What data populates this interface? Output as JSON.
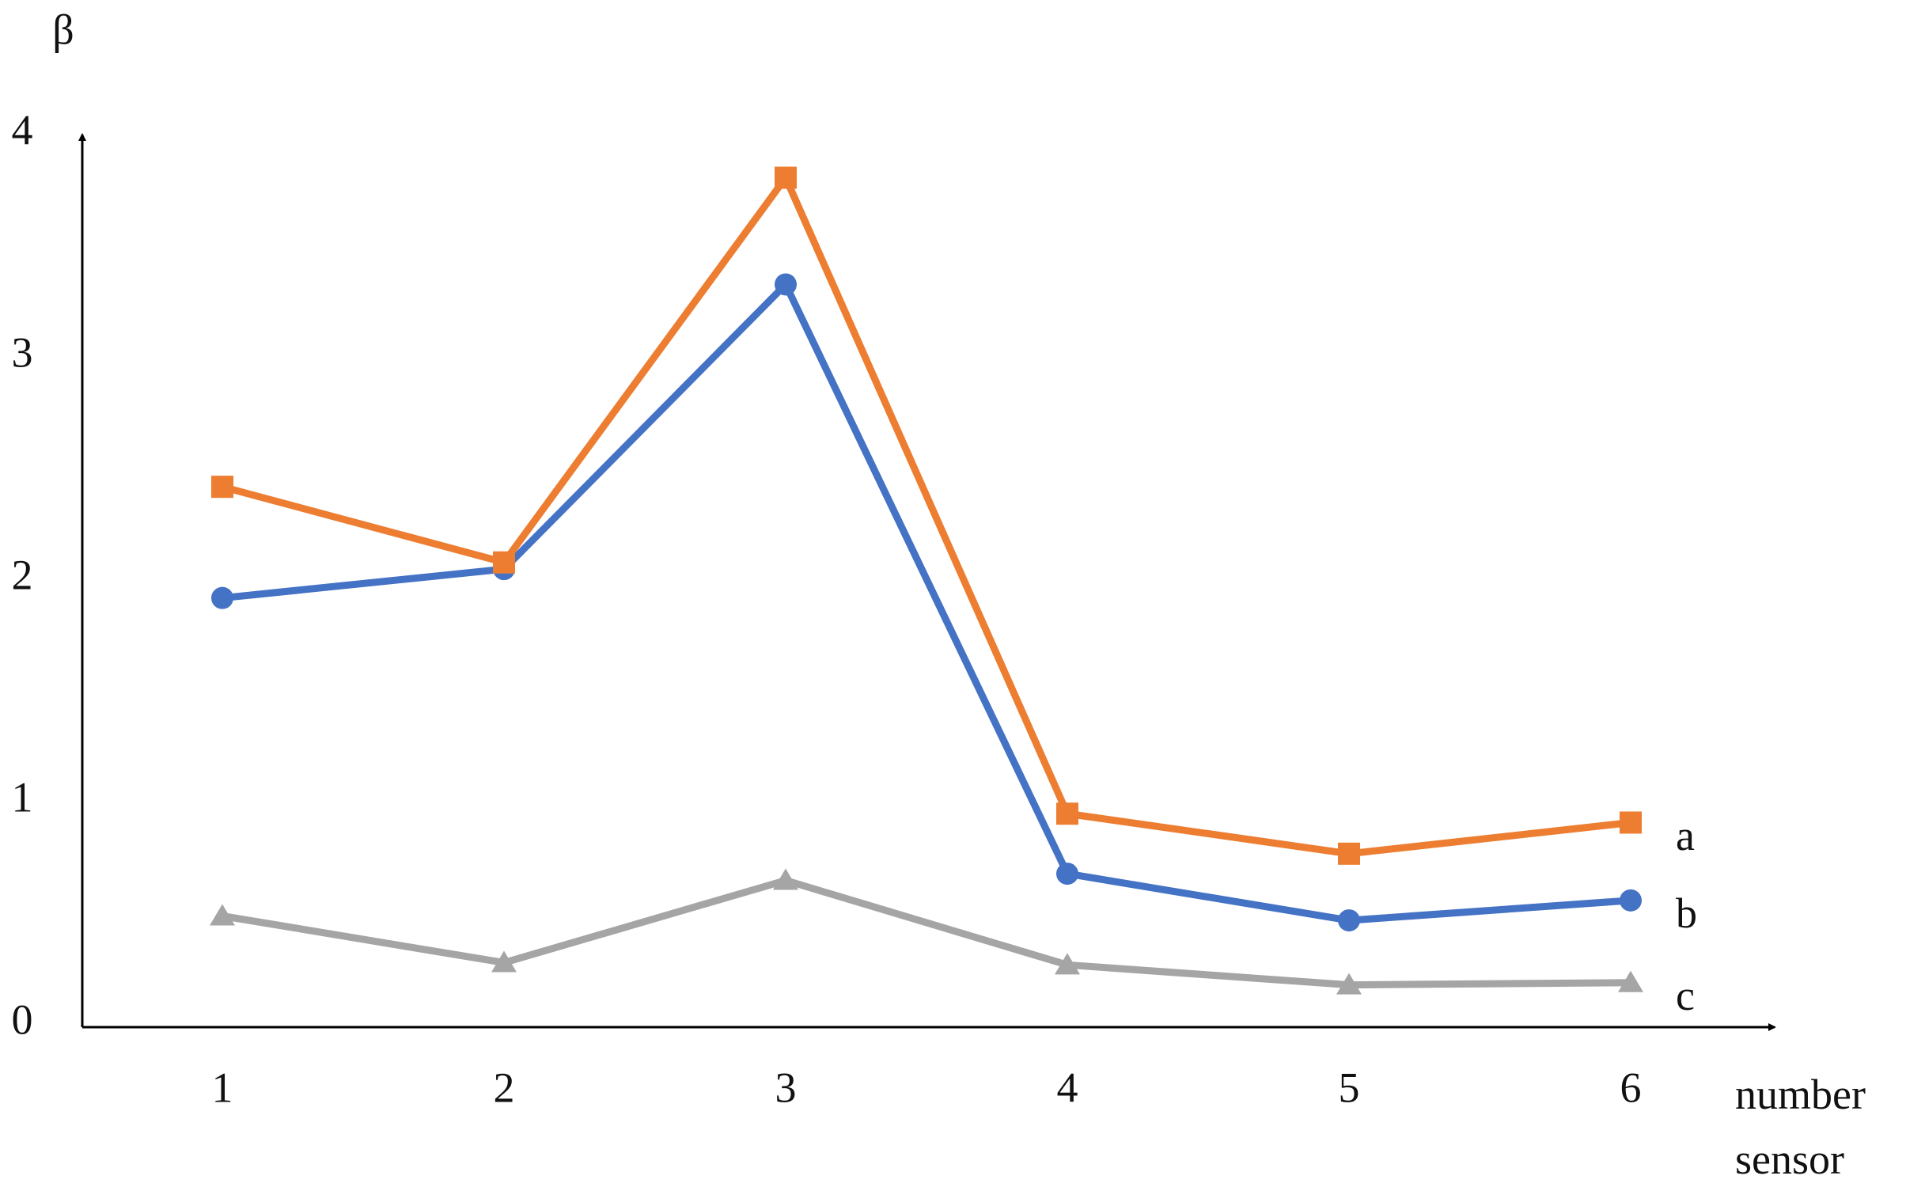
{
  "chart_data": {
    "type": "line",
    "y_label": "β",
    "x_label": "number sensor",
    "categories": [
      "1",
      "2",
      "3",
      "4",
      "5",
      "6"
    ],
    "series": [
      {
        "name": "a",
        "color": "#ed7d31",
        "marker": "square",
        "values": [
          2.43,
          2.09,
          3.82,
          0.96,
          0.78,
          0.92
        ]
      },
      {
        "name": "b",
        "color": "#4472c4",
        "marker": "circle",
        "values": [
          1.93,
          2.06,
          3.34,
          0.69,
          0.48,
          0.57
        ]
      },
      {
        "name": "c",
        "color": "#a5a5a5",
        "marker": "triangle",
        "values": [
          0.5,
          0.29,
          0.66,
          0.28,
          0.19,
          0.2
        ]
      }
    ],
    "ylim": [
      0,
      4
    ],
    "yticks": [
      0,
      1,
      2,
      3,
      4
    ],
    "grid": false
  }
}
